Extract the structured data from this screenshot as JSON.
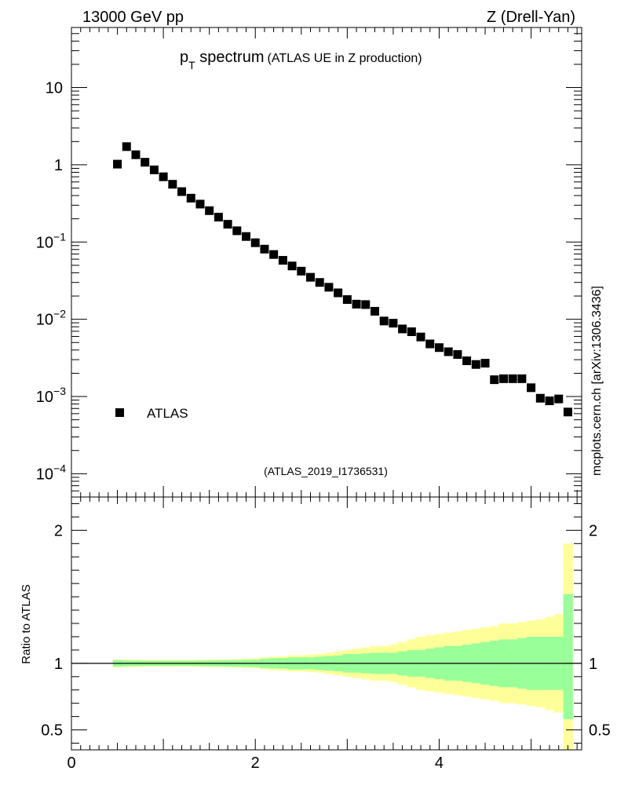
{
  "header": {
    "left": "13000 GeV pp",
    "right": "Z (Drell-Yan)"
  },
  "title": {
    "main": "p",
    "sub": "T",
    "word": " spectrum",
    "note": "(ATLAS UE in Z production)"
  },
  "analysis_label": "(ATLAS_2019_I1736531)",
  "side_label": "mcplots.cern.ch [arXiv:1306.3436]",
  "colors": {
    "marker": "#000000",
    "band_inner": "#99ff99",
    "band_outer": "#ffff99",
    "analysis_label": "#888888",
    "side_label": "#666666"
  },
  "chart_data": [
    {
      "type": "scatter",
      "yscale": "log",
      "xlim": [
        0,
        5.55
      ],
      "ylim": [
        5e-05,
        60
      ],
      "ytick_labels": [
        {
          "value": 10,
          "base": "10",
          "exp": ""
        },
        {
          "value": 1,
          "base": "1",
          "exp": ""
        },
        {
          "value": 0.1,
          "base": "10",
          "exp": "−1"
        },
        {
          "value": 0.01,
          "base": "10",
          "exp": "−2"
        },
        {
          "value": 0.001,
          "base": "10",
          "exp": "−3"
        },
        {
          "value": 0.0001,
          "base": "10",
          "exp": "−4"
        }
      ],
      "legend": {
        "placement": "bottom-left",
        "entries": [
          "ATLAS"
        ]
      },
      "series": [
        {
          "name": "ATLAS",
          "x": [
            0.5,
            0.6,
            0.7,
            0.8,
            0.9,
            1.0,
            1.1,
            1.2,
            1.3,
            1.4,
            1.5,
            1.6,
            1.7,
            1.8,
            1.9,
            2.0,
            2.1,
            2.2,
            2.3,
            2.4,
            2.5,
            2.6,
            2.7,
            2.8,
            2.9,
            3.0,
            3.1,
            3.2,
            3.3,
            3.4,
            3.5,
            3.6,
            3.7,
            3.8,
            3.9,
            4.0,
            4.1,
            4.2,
            4.3,
            4.4,
            4.5,
            4.6,
            4.7,
            4.8,
            4.9,
            5.0,
            5.1,
            5.2,
            5.3,
            5.4
          ],
          "y": [
            1.02,
            1.72,
            1.35,
            1.08,
            0.86,
            0.7,
            0.56,
            0.45,
            0.37,
            0.31,
            0.255,
            0.21,
            0.17,
            0.14,
            0.118,
            0.098,
            0.081,
            0.069,
            0.058,
            0.049,
            0.042,
            0.035,
            0.03,
            0.026,
            0.022,
            0.018,
            0.0157,
            0.0155,
            0.0127,
            0.0095,
            0.0089,
            0.0075,
            0.0069,
            0.0059,
            0.0048,
            0.0043,
            0.0038,
            0.0035,
            0.0029,
            0.0026,
            0.0027,
            0.00165,
            0.0017,
            0.0017,
            0.0017,
            0.0013,
            0.00095,
            0.00088,
            0.00093,
            0.00063
          ]
        }
      ]
    },
    {
      "type": "area",
      "ylabel": "Ratio to ATLAS",
      "xlim": [
        0,
        5.55
      ],
      "ylim": [
        0.35,
        2.25
      ],
      "xtick_labels": [
        "0",
        "2",
        "4"
      ],
      "xticks": [
        0,
        2,
        4
      ],
      "ytick_labels": [
        "0.5",
        "1",
        "2"
      ],
      "yticks": [
        0.5,
        1,
        2
      ],
      "reference": 1,
      "bin_edges": [
        0.45,
        0.55,
        0.65,
        0.75,
        0.85,
        0.95,
        1.05,
        1.15,
        1.25,
        1.35,
        1.45,
        1.55,
        1.65,
        1.75,
        1.85,
        1.95,
        2.05,
        2.15,
        2.25,
        2.35,
        2.45,
        2.55,
        2.65,
        2.75,
        2.85,
        2.95,
        3.05,
        3.15,
        3.25,
        3.35,
        3.45,
        3.55,
        3.65,
        3.75,
        3.85,
        3.95,
        4.05,
        4.15,
        4.25,
        4.35,
        4.45,
        4.55,
        4.65,
        4.75,
        4.85,
        4.95,
        5.05,
        5.15,
        5.25,
        5.35,
        5.45
      ],
      "series": [
        {
          "name": "inner",
          "lower": [
            0.975,
            0.978,
            0.979,
            0.98,
            0.98,
            0.98,
            0.98,
            0.98,
            0.98,
            0.979,
            0.978,
            0.977,
            0.976,
            0.975,
            0.973,
            0.972,
            0.965,
            0.962,
            0.96,
            0.955,
            0.955,
            0.955,
            0.95,
            0.945,
            0.94,
            0.93,
            0.93,
            0.925,
            0.92,
            0.92,
            0.92,
            0.91,
            0.9,
            0.9,
            0.89,
            0.88,
            0.87,
            0.87,
            0.86,
            0.85,
            0.84,
            0.83,
            0.82,
            0.82,
            0.81,
            0.8,
            0.8,
            0.8,
            0.8,
            0.58
          ],
          "upper": [
            1.025,
            1.022,
            1.021,
            1.02,
            1.02,
            1.02,
            1.02,
            1.02,
            1.02,
            1.021,
            1.022,
            1.023,
            1.024,
            1.025,
            1.027,
            1.028,
            1.035,
            1.038,
            1.04,
            1.045,
            1.045,
            1.045,
            1.05,
            1.055,
            1.06,
            1.07,
            1.07,
            1.075,
            1.08,
            1.08,
            1.08,
            1.09,
            1.1,
            1.1,
            1.11,
            1.12,
            1.13,
            1.13,
            1.14,
            1.15,
            1.16,
            1.17,
            1.18,
            1.18,
            1.19,
            1.2,
            1.2,
            1.2,
            1.2,
            1.52
          ]
        },
        {
          "name": "outer",
          "lower": [
            0.97,
            0.972,
            0.973,
            0.974,
            0.974,
            0.974,
            0.974,
            0.974,
            0.974,
            0.973,
            0.972,
            0.971,
            0.97,
            0.968,
            0.965,
            0.963,
            0.955,
            0.95,
            0.947,
            0.94,
            0.94,
            0.935,
            0.93,
            0.92,
            0.91,
            0.9,
            0.89,
            0.88,
            0.87,
            0.87,
            0.86,
            0.84,
            0.82,
            0.8,
            0.79,
            0.78,
            0.77,
            0.76,
            0.75,
            0.74,
            0.73,
            0.72,
            0.7,
            0.7,
            0.69,
            0.68,
            0.67,
            0.65,
            0.63,
            0.35
          ],
          "upper": [
            1.03,
            1.028,
            1.027,
            1.026,
            1.026,
            1.026,
            1.026,
            1.026,
            1.026,
            1.027,
            1.028,
            1.029,
            1.03,
            1.032,
            1.035,
            1.037,
            1.045,
            1.05,
            1.053,
            1.06,
            1.06,
            1.065,
            1.07,
            1.08,
            1.09,
            1.1,
            1.11,
            1.12,
            1.13,
            1.13,
            1.14,
            1.16,
            1.18,
            1.2,
            1.21,
            1.22,
            1.23,
            1.24,
            1.25,
            1.26,
            1.27,
            1.28,
            1.3,
            1.3,
            1.31,
            1.32,
            1.33,
            1.35,
            1.37,
            1.9
          ]
        }
      ]
    }
  ]
}
